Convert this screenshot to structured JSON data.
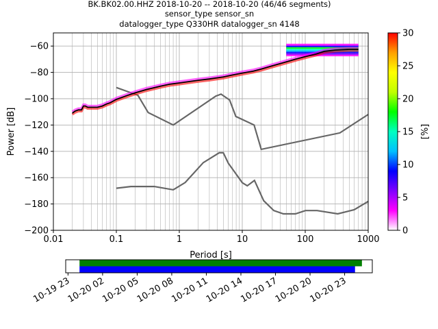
{
  "title": {
    "line1": "BK.BK02.00.HHZ   2018-10-20 -- 2018-10-20  (46/46 segments)",
    "line2": "sensor_type  sensor_sn",
    "line3": "datalogger_type Q330HR datalogger_sn 4148"
  },
  "chart_data": [
    {
      "type": "heatmap",
      "xlabel": "Period [s]",
      "ylabel": "Power [dB]",
      "xscale": "log",
      "xlim": [
        0.01,
        1000
      ],
      "ylim": [
        -200,
        -50
      ],
      "x_tick_labels": [
        "0.01",
        "0.1",
        "1",
        "10",
        "100",
        "1000"
      ],
      "x_tick_values": [
        0.01,
        0.1,
        1,
        10,
        100,
        1000
      ],
      "y_tick_labels": [
        "−200",
        "−180",
        "−160",
        "−140",
        "−120",
        "−100",
        "−80",
        "−60"
      ],
      "y_tick_values": [
        -200,
        -180,
        -160,
        -140,
        -120,
        -100,
        -80,
        -60
      ],
      "grid": true,
      "colorbar": {
        "label": "[%]",
        "range": [
          0,
          30
        ],
        "tick_labels": [
          "0",
          "5",
          "10",
          "15",
          "20",
          "25",
          "30"
        ],
        "tick_values": [
          0,
          5,
          10,
          15,
          20,
          25,
          30
        ],
        "colors": [
          "#ffffff",
          "#ff00ff",
          "#8000ff",
          "#0000ff",
          "#00c0ff",
          "#00ffc0",
          "#00ff00",
          "#c0ff00",
          "#ffff00",
          "#ffa000",
          "#ff0000"
        ]
      },
      "psd_mode": {
        "period": [
          0.02,
          0.022,
          0.025,
          0.028,
          0.03,
          0.032,
          0.035,
          0.04,
          0.05,
          0.06,
          0.07,
          0.08,
          0.1,
          0.15,
          0.2,
          0.3,
          0.5,
          0.7,
          1,
          2,
          3,
          5,
          7,
          10,
          15,
          20,
          30,
          50,
          70,
          100,
          150,
          200,
          300,
          500,
          700
        ],
        "power": [
          -111,
          -109.5,
          -108.5,
          -108.5,
          -105.5,
          -105.5,
          -106.5,
          -106.5,
          -106.5,
          -105.5,
          -104,
          -103,
          -100.5,
          -97.5,
          -95.5,
          -93,
          -90.5,
          -89,
          -88,
          -86,
          -85,
          -83.5,
          -82,
          -80.5,
          -79,
          -77.5,
          -75,
          -72,
          -70,
          -68,
          -66,
          -64,
          -63,
          -62.5,
          -62.5
        ]
      },
      "spread": {
        "period_min": 50,
        "period_max": 700,
        "power_min": -67,
        "power_max": -59
      },
      "nhnm": {
        "period": [
          0.1,
          0.22,
          0.32,
          0.8,
          3.8,
          4.6,
          6.3,
          7.9,
          15.4,
          20,
          354.8,
          1000
        ],
        "power": [
          -91.5,
          -97.4,
          -110.5,
          -120,
          -98,
          -96.5,
          -101,
          -113.5,
          -120,
          -138.5,
          -126,
          -112
        ]
      },
      "nlnm": {
        "period": [
          0.1,
          0.17,
          0.4,
          0.8,
          1.24,
          2.4,
          4.3,
          5,
          6,
          10,
          12,
          15.6,
          21.9,
          31.6,
          45,
          70,
          101,
          154,
          328,
          600,
          1000
        ],
        "power": [
          -168,
          -166.7,
          -166.7,
          -169.2,
          -163.7,
          -148.6,
          -141.1,
          -141.1,
          -149,
          -163.8,
          -166.2,
          -162.1,
          -177.5,
          -185,
          -187.5,
          -187.5,
          -185,
          -185,
          -187.5,
          -184.4,
          -178
        ]
      }
    },
    {
      "type": "timeline",
      "x_tick_labels": [
        "10-19 23",
        "10-20 02",
        "10-20 05",
        "10-20 08",
        "10-20 11",
        "10-20 14",
        "10-20 17",
        "10-20 20",
        "10-20 23"
      ],
      "x_tick_values_hours": [
        -1,
        2,
        5,
        8,
        11,
        14,
        17,
        20,
        23
      ],
      "xlim_hours": [
        -1.2,
        25.4
      ],
      "bars": [
        {
          "color": "#008000",
          "start_hours": 0,
          "end_hours": 24.5
        },
        {
          "color": "#0000ff",
          "start_hours": 0,
          "end_hours": 23.9
        }
      ]
    }
  ]
}
